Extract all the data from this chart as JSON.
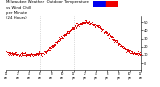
{
  "background_color": "#ffffff",
  "dot_color": "#dd0000",
  "dot_size": 0.5,
  "ylim": [
    -8,
    58
  ],
  "yticks": [
    0,
    10,
    20,
    30,
    40,
    50
  ],
  "ytick_fontsize": 2.5,
  "xtick_fontsize": 1.9,
  "legend_blue": "#0000ee",
  "legend_red": "#ee0000",
  "grid_color": "#bbbbbb",
  "vline_x": [
    6.0,
    12.0
  ],
  "xlim": [
    0,
    24
  ],
  "curve_points_x": [
    0,
    1,
    2,
    3,
    4,
    5,
    6,
    7,
    8,
    9,
    10,
    11,
    12,
    13,
    14,
    15,
    16,
    17,
    18,
    19,
    20,
    21,
    22,
    23,
    24
  ],
  "curve_points_y": [
    13,
    12,
    11,
    11,
    10,
    11,
    12,
    14,
    20,
    26,
    32,
    38,
    44,
    48,
    50,
    49,
    46,
    42,
    36,
    30,
    24,
    18,
    14,
    12,
    10
  ],
  "noise_scale": 1.2,
  "subsample": 3
}
